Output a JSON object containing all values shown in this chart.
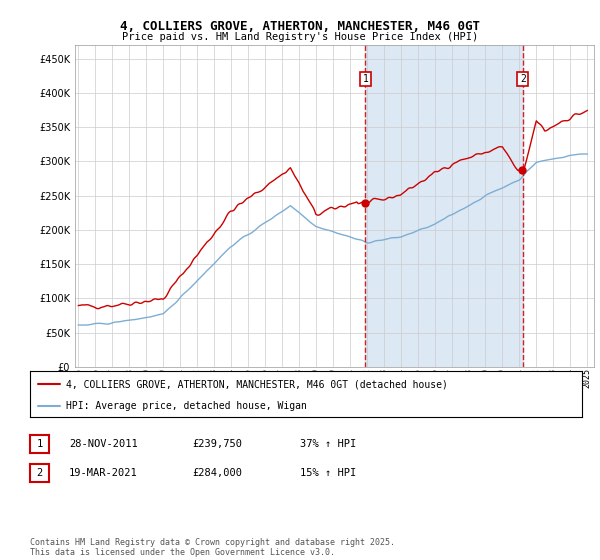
{
  "title": "4, COLLIERS GROVE, ATHERTON, MANCHESTER, M46 0GT",
  "subtitle": "Price paid vs. HM Land Registry's House Price Index (HPI)",
  "plot_bg_color": "#ffffff",
  "shade_color": "#dce9f5",
  "red_line_color": "#cc0000",
  "blue_line_color": "#7eadd4",
  "dashed_line_color": "#cc0000",
  "grid_color": "#cccccc",
  "ylim": [
    0,
    470000
  ],
  "yticks": [
    0,
    50000,
    100000,
    150000,
    200000,
    250000,
    300000,
    350000,
    400000,
    450000
  ],
  "legend_label_red": "4, COLLIERS GROVE, ATHERTON, MANCHESTER, M46 0GT (detached house)",
  "legend_label_blue": "HPI: Average price, detached house, Wigan",
  "transaction1_date": "28-NOV-2011",
  "transaction1_price": "£239,750",
  "transaction1_hpi": "37% ↑ HPI",
  "transaction2_date": "19-MAR-2021",
  "transaction2_price": "£284,000",
  "transaction2_hpi": "15% ↑ HPI",
  "footer": "Contains HM Land Registry data © Crown copyright and database right 2025.\nThis data is licensed under the Open Government Licence v3.0.",
  "t1_year": 2011.917,
  "t2_year": 2021.2,
  "t1_price": 239750,
  "t2_price": 284000
}
